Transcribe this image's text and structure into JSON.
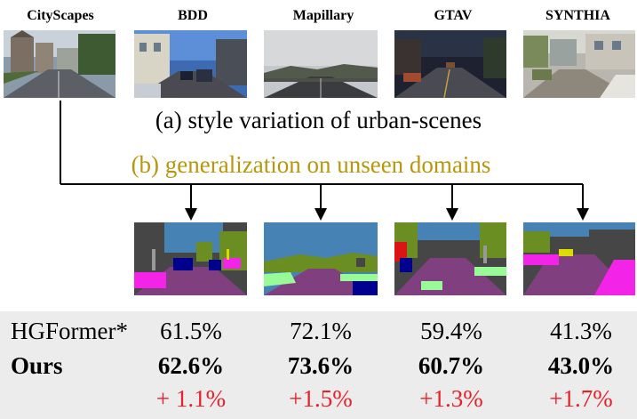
{
  "domains": [
    {
      "name": "CityScapes"
    },
    {
      "name": "BDD"
    },
    {
      "name": "Mapillary"
    },
    {
      "name": "GTAV"
    },
    {
      "name": "SYNTHIA"
    }
  ],
  "captions": {
    "style": "(a) style variation of urban-scenes",
    "generalization": "(b) generalization on unseen domains"
  },
  "colors": {
    "generalization_text": "#b8960e",
    "gain_text": "#e8202a",
    "table_background": "#ececec"
  },
  "results": {
    "rows": [
      {
        "label": "HGFormer*",
        "values": [
          "61.5%",
          "72.1%",
          "59.4%",
          "41.3%"
        ]
      },
      {
        "label": "Ours",
        "values": [
          "62.6%",
          "73.6%",
          "60.7%",
          "43.0%"
        ]
      },
      {
        "label": "",
        "values": [
          "+ 1.1%",
          "+1.5%",
          "+1.3%",
          "+1.7%"
        ]
      }
    ]
  }
}
